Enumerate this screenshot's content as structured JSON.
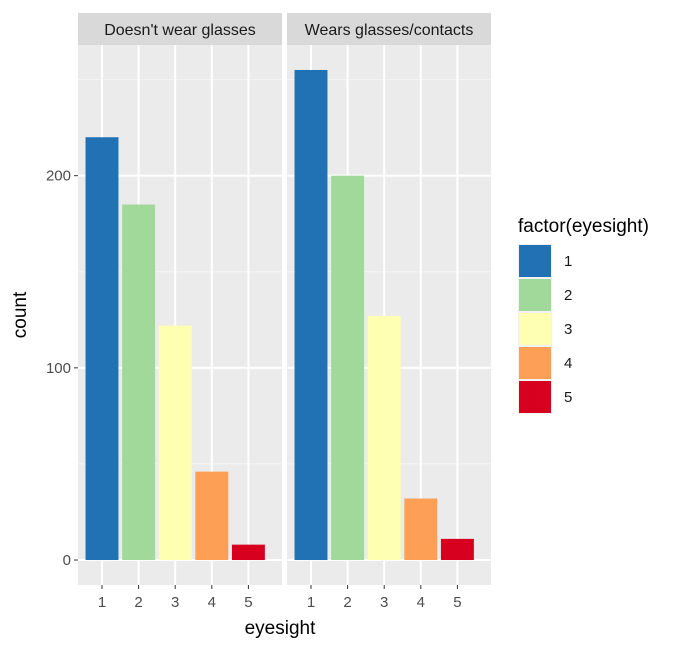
{
  "chart_data": {
    "type": "bar",
    "facets": [
      "Doesn't wear glasses",
      "Wears glasses/contacts"
    ],
    "categories": [
      "1",
      "2",
      "3",
      "4",
      "5"
    ],
    "series": [
      {
        "facet": "Doesn't wear glasses",
        "values": [
          220,
          185,
          122,
          46,
          8
        ]
      },
      {
        "facet": "Wears glasses/contacts",
        "values": [
          255,
          200,
          127,
          32,
          11
        ]
      }
    ],
    "colors": [
      "#2171b5",
      "#a1d99b",
      "#ffffb2",
      "#fd9f55",
      "#d7001f"
    ],
    "xlabel": "eyesight",
    "ylabel": "count",
    "yticks": [
      0,
      100,
      200
    ],
    "ylim": [
      -13,
      268
    ],
    "grid": true,
    "legend": {
      "title": "factor(eyesight)",
      "labels": [
        "1",
        "2",
        "3",
        "4",
        "5"
      ],
      "position": "right"
    },
    "panel_background": "#ebebeb",
    "strip_background": "#d9d9d9"
  }
}
